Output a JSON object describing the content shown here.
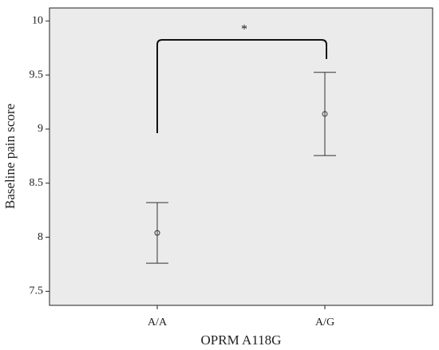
{
  "chart_data": {
    "type": "errorbar",
    "categories": [
      "A/A",
      "A/G"
    ],
    "values": [
      8.04,
      9.14
    ],
    "errors": [
      0.28,
      0.385
    ],
    "ylim": [
      7.37,
      10.12
    ],
    "yticks": [
      7.5,
      8,
      8.5,
      9,
      9.5,
      10
    ],
    "x_label": "OPRM A118G",
    "y_label": "Baseline pain score",
    "annotation": "*",
    "color": "#333333"
  }
}
